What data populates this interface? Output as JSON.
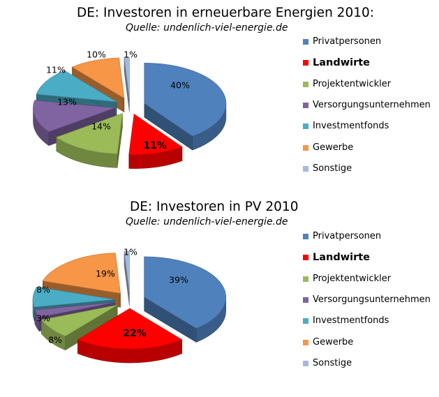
{
  "colors": {
    "Privatpersonen": "#4f81bd",
    "Landwirte": "#ff0000",
    "Projektentwickler": "#9bbb59",
    "Versorgungsunternehmen": "#8064a2",
    "Investmentfonds": "#4bacc6",
    "Gewerbe": "#f79646",
    "Sonstige": "#a5b9e0"
  },
  "chart_data": [
    {
      "type": "pie",
      "title": "DE: Investoren in erneuerbare Energien 2010:",
      "subtitle": "Quelle: undenlich-viel-energie.de",
      "labels": [
        "Privatpersonen",
        "Landwirte",
        "Projektentwickler",
        "Versorgungsunternehmen",
        "Investmentfonds",
        "Gewerbe",
        "Sonstige"
      ],
      "values": [
        40,
        11,
        14,
        13,
        11,
        10,
        1
      ],
      "value_labels": [
        "40%",
        "11%",
        "14%",
        "13%",
        "11%",
        "10%",
        "1%"
      ],
      "highlight": "Landwirte",
      "legend_position": "right"
    },
    {
      "type": "pie",
      "title": "DE: Investoren in PV 2010",
      "subtitle": "Quelle: undenlich-viel-energie.de",
      "labels": [
        "Privatpersonen",
        "Landwirte",
        "Projektentwickler",
        "Versorgungsunternehmen",
        "Investmentfonds",
        "Gewerbe",
        "Sonstige"
      ],
      "values": [
        39,
        22,
        8,
        3,
        8,
        19,
        1
      ],
      "value_labels": [
        "39%",
        "22%",
        "8%",
        "3%",
        "8%",
        "19%",
        "1%"
      ],
      "highlight": "Landwirte",
      "legend_position": "right"
    }
  ]
}
